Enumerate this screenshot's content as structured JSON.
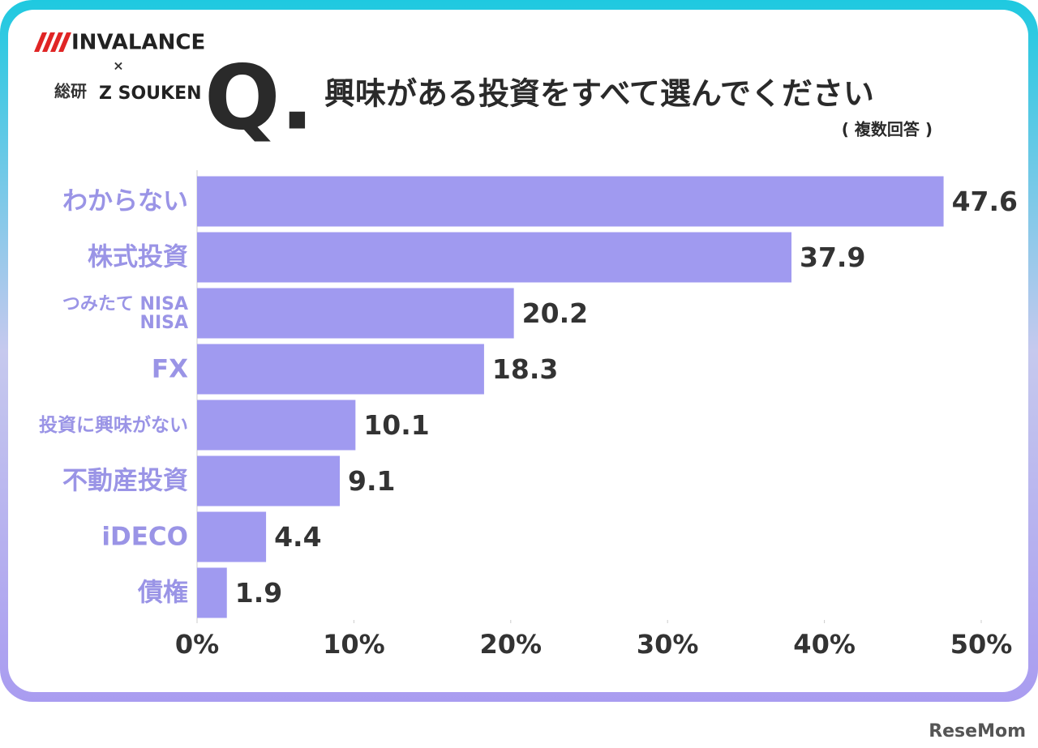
{
  "chart_data": {
    "type": "hbar",
    "title": "興味がある投資をすべて選んでください",
    "subtitle": "( 複数回答 )",
    "question_mark": "Q.",
    "categories": [
      "わからない",
      "株式投資",
      "つみたて NISA\nNISA",
      "FX",
      "投資に興味がない",
      "不動産投資",
      "iDECO",
      "債権"
    ],
    "values": [
      47.6,
      37.9,
      20.2,
      18.3,
      10.1,
      9.1,
      4.4,
      1.9
    ],
    "color": "#a09af0",
    "xlim": [
      0,
      50
    ],
    "xticks": [
      {
        "value": 0,
        "label": "0%"
      },
      {
        "value": 10,
        "label": "10%"
      },
      {
        "value": 20,
        "label": "20%"
      },
      {
        "value": 30,
        "label": "30%"
      },
      {
        "value": 40,
        "label": "40%"
      },
      {
        "value": 50,
        "label": "50%"
      }
    ]
  },
  "logos": {
    "brand": "INVALANCE",
    "cross": "×",
    "souken_mark": "総研",
    "souken": "Z SOUKEN"
  },
  "watermark": "ReseMom"
}
